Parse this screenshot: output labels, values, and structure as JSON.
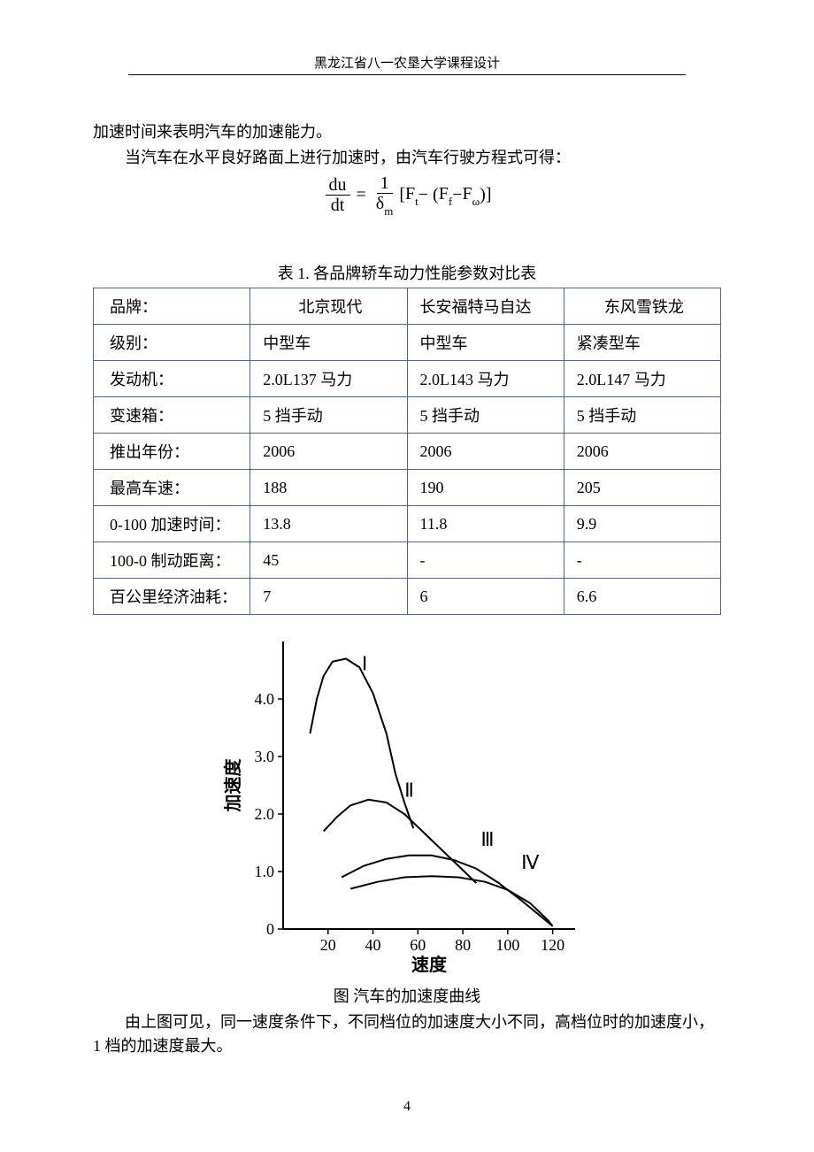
{
  "header": "黑龙江省八一农垦大学课程设计",
  "para1": "加速时间来表明汽车的加速能力。",
  "para2": "当汽车在水平良好路面上进行加速时，由汽车行驶方程式可得：",
  "equation": {
    "lhs_num": "du",
    "lhs_den": "dt",
    "eq": "=",
    "rhs1_num": "1",
    "rhs1_den_base": "δ",
    "rhs1_den_sub": "m",
    "open": "[",
    "Ft_base": "F",
    "Ft_sub": "t",
    "minus1": " − (",
    "Ff_base": "F",
    "Ff_sub": "f",
    "minus2": " − ",
    "Fw_base": "F",
    "Fw_sub": "ω",
    "close": ")]"
  },
  "table": {
    "caption": "表 1. 各品牌轿车动力性能参数对比表",
    "border_color": "#4a6aa5",
    "columns": [
      "品牌：",
      "北京现代",
      "长安福特马自达",
      "东风雪铁龙"
    ],
    "rows": [
      [
        "级别：",
        "中型车",
        "中型车",
        "紧凑型车"
      ],
      [
        "发动机：",
        "2.0L137 马力",
        "2.0L143 马力",
        "2.0L147 马力"
      ],
      [
        "变速箱：",
        "5 挡手动",
        "5 挡手动",
        "5 挡手动"
      ],
      [
        "推出年份：",
        "2006",
        "2006",
        "2006"
      ],
      [
        "最高车速：",
        "188",
        "190",
        "205"
      ],
      [
        "0-100 加速时间：",
        "13.8",
        "11.8",
        "9.9"
      ],
      [
        "100-0 制动距离：",
        "45",
        "-",
        "-"
      ],
      [
        "百公里经济油耗：",
        "7",
        "6",
        "6.6"
      ]
    ]
  },
  "chart": {
    "type": "line",
    "xlabel": "速度",
    "ylabel": "加速度",
    "xlim": [
      0,
      130
    ],
    "ylim": [
      0,
      5.0
    ],
    "xticks": [
      20,
      40,
      60,
      80,
      100,
      120
    ],
    "yticks": [
      0,
      1.0,
      2.0,
      3.0,
      4.0
    ],
    "ytick_labels": [
      "0",
      "1.0",
      "2.0",
      "3.0",
      "4.0"
    ],
    "axis_color": "#000000",
    "line_color": "#000000",
    "line_width": 2,
    "label_fontsize": 20,
    "tick_fontsize": 18,
    "roman_fontsize": 22,
    "series": [
      {
        "label": "Ⅰ",
        "label_xy": [
          35,
          4.5
        ],
        "points": [
          [
            12,
            3.4
          ],
          [
            15,
            4.0
          ],
          [
            18,
            4.4
          ],
          [
            22,
            4.65
          ],
          [
            28,
            4.7
          ],
          [
            34,
            4.55
          ],
          [
            40,
            4.1
          ],
          [
            46,
            3.4
          ],
          [
            50,
            2.7
          ],
          [
            54,
            2.2
          ],
          [
            58,
            1.75
          ]
        ]
      },
      {
        "label": "Ⅱ",
        "label_xy": [
          54,
          2.3
        ],
        "points": [
          [
            18,
            1.7
          ],
          [
            24,
            1.95
          ],
          [
            30,
            2.15
          ],
          [
            38,
            2.25
          ],
          [
            46,
            2.2
          ],
          [
            54,
            2.0
          ],
          [
            62,
            1.7
          ],
          [
            70,
            1.4
          ],
          [
            78,
            1.1
          ],
          [
            86,
            0.8
          ]
        ]
      },
      {
        "label": "Ⅲ",
        "label_xy": [
          88,
          1.45
        ],
        "points": [
          [
            26,
            0.9
          ],
          [
            36,
            1.1
          ],
          [
            46,
            1.22
          ],
          [
            56,
            1.28
          ],
          [
            66,
            1.28
          ],
          [
            76,
            1.2
          ],
          [
            86,
            1.05
          ],
          [
            96,
            0.8
          ],
          [
            106,
            0.5
          ],
          [
            116,
            0.18
          ],
          [
            120,
            0.05
          ]
        ]
      },
      {
        "label": "Ⅳ",
        "label_xy": [
          106,
          1.05
        ],
        "points": [
          [
            30,
            0.7
          ],
          [
            42,
            0.82
          ],
          [
            54,
            0.9
          ],
          [
            66,
            0.92
          ],
          [
            78,
            0.9
          ],
          [
            90,
            0.82
          ],
          [
            100,
            0.68
          ],
          [
            110,
            0.45
          ],
          [
            118,
            0.15
          ],
          [
            120,
            0.05
          ]
        ]
      }
    ],
    "caption": "图 汽车的加速度曲线"
  },
  "para3": "由上图可见，同一速度条件下，不同档位的加速度大小不同，高档位时的加速度小，1 档的加速度最大。",
  "page_number": "4"
}
